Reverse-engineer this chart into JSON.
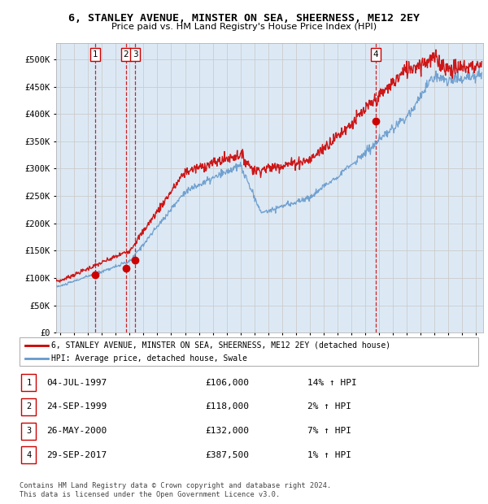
{
  "title": "6, STANLEY AVENUE, MINSTER ON SEA, SHEERNESS, ME12 2EY",
  "subtitle": "Price paid vs. HM Land Registry's House Price Index (HPI)",
  "xlim": [
    1994.7,
    2025.5
  ],
  "ylim": [
    0,
    530000
  ],
  "yticks": [
    0,
    50000,
    100000,
    150000,
    200000,
    250000,
    300000,
    350000,
    400000,
    450000,
    500000
  ],
  "plot_background": "#dce9f5",
  "sale_dates": [
    1997.5,
    1999.73,
    2000.4,
    2017.75
  ],
  "sale_prices": [
    106000,
    118000,
    132000,
    387500
  ],
  "sale_labels": [
    "1",
    "2",
    "3",
    "4"
  ],
  "legend_line1": "6, STANLEY AVENUE, MINSTER ON SEA, SHEERNESS, ME12 2EY (detached house)",
  "legend_line2": "HPI: Average price, detached house, Swale",
  "table_data": [
    [
      "1",
      "04-JUL-1997",
      "£106,000",
      "14% ↑ HPI"
    ],
    [
      "2",
      "24-SEP-1999",
      "£118,000",
      "2% ↑ HPI"
    ],
    [
      "3",
      "26-MAY-2000",
      "£132,000",
      "7% ↑ HPI"
    ],
    [
      "4",
      "29-SEP-2017",
      "£387,500",
      "1% ↑ HPI"
    ]
  ],
  "footer": "Contains HM Land Registry data © Crown copyright and database right 2024.\nThis data is licensed under the Open Government Licence v3.0.",
  "red_color": "#cc0000",
  "blue_color": "#6699cc",
  "grid_color": "#cccccc"
}
